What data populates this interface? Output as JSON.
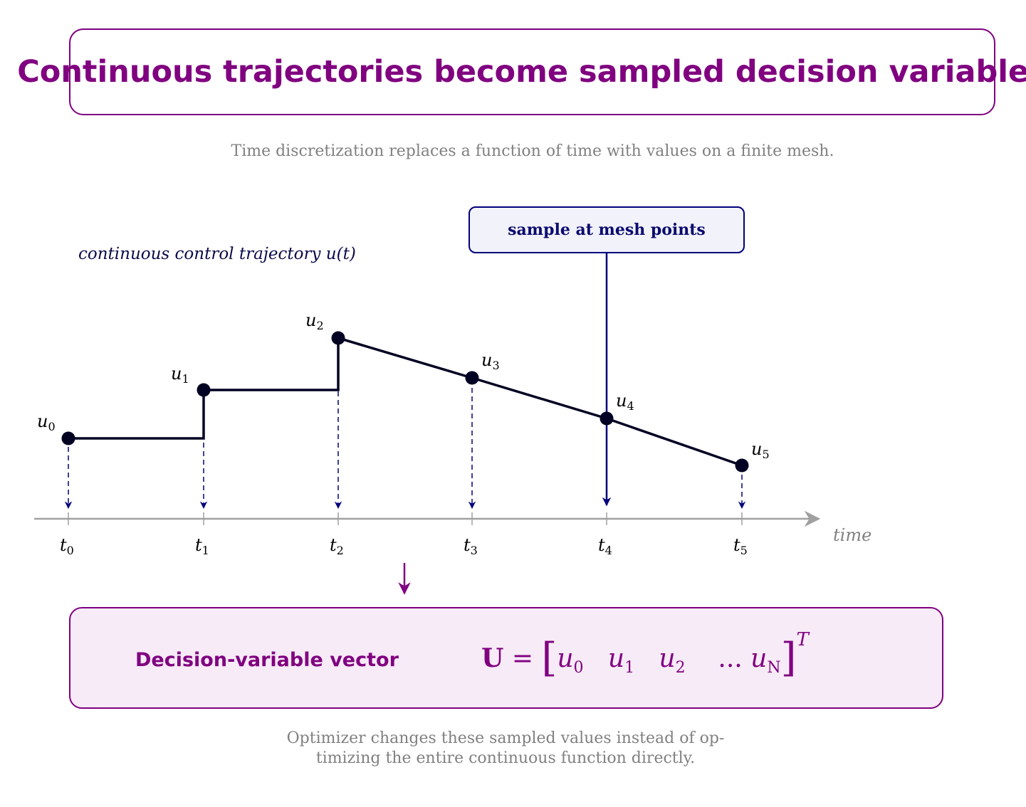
{
  "title": "Continuous trajectories become sampled decision variables",
  "subtitle": "Time discretization replaces a function of time with values on a finite mesh.",
  "callout": "sample at mesh points",
  "trajectory_label": "continuous control trajectory u(t)",
  "axis_label": "time",
  "points": [
    {
      "u": "u",
      "u_sub": "0",
      "t": "t",
      "t_sub": "0"
    },
    {
      "u": "u",
      "u_sub": "1",
      "t": "t",
      "t_sub": "1"
    },
    {
      "u": "u",
      "u_sub": "2",
      "t": "t",
      "t_sub": "2"
    },
    {
      "u": "u",
      "u_sub": "3",
      "t": "t",
      "t_sub": "3"
    },
    {
      "u": "u",
      "u_sub": "4",
      "t": "t",
      "t_sub": "4"
    },
    {
      "u": "u",
      "u_sub": "5",
      "t": "t",
      "t_sub": "5"
    }
  ],
  "vector": {
    "label": "Decision-variable vector",
    "symbol": "U",
    "equals": "=",
    "entries": [
      {
        "base": "u",
        "sub": "0"
      },
      {
        "base": "u",
        "sub": "1"
      },
      {
        "base": "u",
        "sub": "2"
      },
      {
        "base": "...",
        "sub": ""
      },
      {
        "base": "u",
        "sub": "N"
      }
    ],
    "transpose": "T"
  },
  "footnote_line1": "Optimizer changes these sampled values instead of op-",
  "footnote_line2": "timizing the entire continuous function directly.",
  "colors": {
    "accent": "#800080",
    "navy": "#00007a",
    "trajectory": "#000022",
    "axis": "#a0a0a0"
  }
}
